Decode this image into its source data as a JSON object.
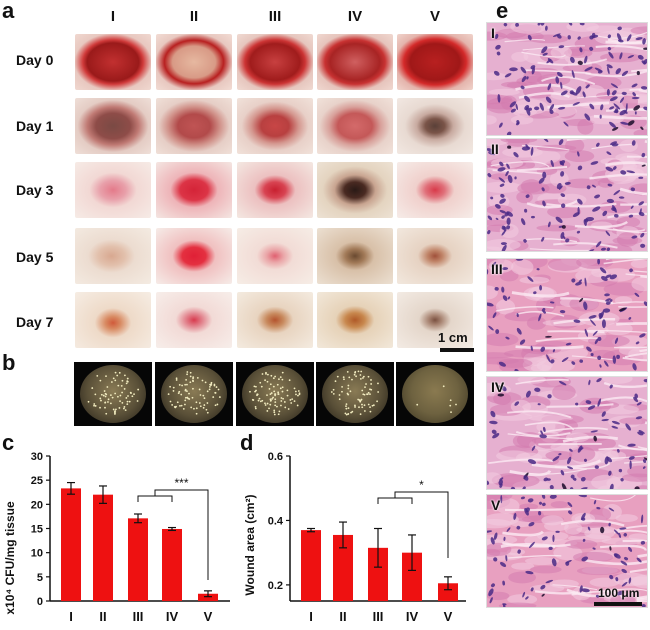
{
  "figure": {
    "panel_labels": {
      "a": "a",
      "b": "b",
      "c": "c",
      "d": "d",
      "e": "e"
    },
    "groups": [
      "I",
      "II",
      "III",
      "IV",
      "V"
    ],
    "days": [
      "Day 0",
      "Day 1",
      "Day 3",
      "Day 5",
      "Day 7"
    ],
    "scale_bar_a": "1 cm",
    "scale_bar_e": "100 μm",
    "histology_labels": [
      "I",
      "II",
      "III",
      "IV",
      "V"
    ],
    "colors": {
      "bar": "#ee1111",
      "wound": "#b01818",
      "stain": "#d98ab8"
    }
  },
  "chart_data": [
    {
      "type": "bar",
      "categories": [
        "I",
        "II",
        "III",
        "IV",
        "V"
      ],
      "values": [
        23.3,
        22.0,
        17.1,
        14.9,
        1.5
      ],
      "errors": [
        1.2,
        1.8,
        0.9,
        0.3,
        0.6
      ],
      "title": "",
      "xlabel": "",
      "ylabel": "x10⁴ CFU/mg tissue",
      "ylim": [
        0,
        30
      ],
      "yticks": [
        "0",
        "5",
        "10",
        "15",
        "20",
        "25",
        "30"
      ],
      "significance": "***",
      "grid": false
    },
    {
      "type": "bar",
      "categories": [
        "I",
        "II",
        "III",
        "IV",
        "V"
      ],
      "values": [
        0.37,
        0.355,
        0.315,
        0.3,
        0.205
      ],
      "errors": [
        0.005,
        0.04,
        0.06,
        0.055,
        0.02
      ],
      "title": "",
      "xlabel": "",
      "ylabel": "Wound area (cm²)",
      "ylim": [
        0.15,
        0.6
      ],
      "yticks": [
        "0.2",
        "0.4",
        "0.6"
      ],
      "significance": "*",
      "grid": false
    }
  ]
}
